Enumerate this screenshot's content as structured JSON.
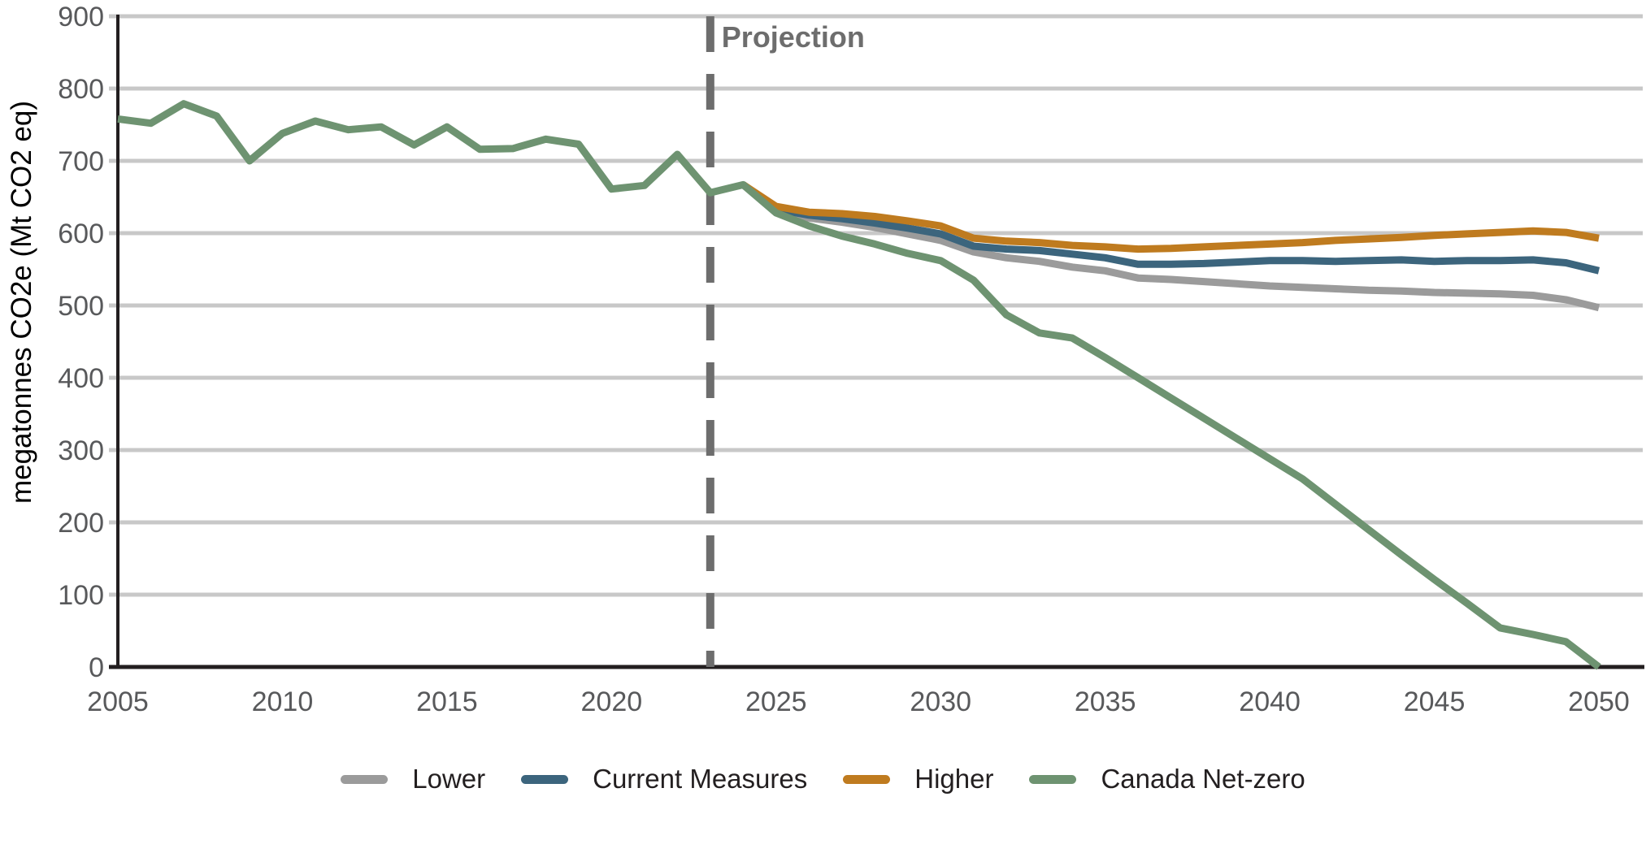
{
  "chart_data": {
    "type": "line",
    "title": "",
    "xlabel": "",
    "ylabel": "megatonnes CO2e (Mt CO2 eq)",
    "xlim": [
      2005,
      2050
    ],
    "ylim": [
      0,
      900
    ],
    "x_ticks": [
      2005,
      2010,
      2015,
      2020,
      2025,
      2030,
      2035,
      2040,
      2045,
      2050
    ],
    "y_ticks": [
      0,
      100,
      200,
      300,
      400,
      500,
      600,
      700,
      800,
      900
    ],
    "grid": "horizontal",
    "legend_position": "bottom-center",
    "annotations": [
      {
        "type": "vline",
        "x": 2023,
        "style": "dashed",
        "label": "Projection",
        "color": "#6D6D6D"
      }
    ],
    "series": [
      {
        "name": "Lower",
        "color": "#9B9B9B",
        "x": [
          2024,
          2025,
          2026,
          2027,
          2028,
          2029,
          2030,
          2031,
          2032,
          2033,
          2034,
          2035,
          2036,
          2037,
          2038,
          2039,
          2040,
          2041,
          2042,
          2043,
          2044,
          2045,
          2046,
          2047,
          2048,
          2049,
          2050
        ],
        "values": [
          667,
          631,
          621,
          615,
          608,
          599,
          590,
          574,
          566,
          561,
          553,
          548,
          538,
          536,
          533,
          530,
          527,
          525,
          523,
          521,
          520,
          518,
          517,
          516,
          514,
          508,
          497
        ]
      },
      {
        "name": "Current Measures",
        "color": "#3C657D",
        "x": [
          2024,
          2025,
          2026,
          2027,
          2028,
          2029,
          2030,
          2031,
          2032,
          2033,
          2034,
          2035,
          2036,
          2037,
          2038,
          2039,
          2040,
          2041,
          2042,
          2043,
          2044,
          2045,
          2046,
          2047,
          2048,
          2049,
          2050
        ],
        "values": [
          667,
          633,
          625,
          620,
          614,
          607,
          599,
          582,
          578,
          576,
          571,
          566,
          557,
          557,
          558,
          560,
          562,
          562,
          561,
          562,
          563,
          561,
          562,
          562,
          563,
          559,
          548
        ]
      },
      {
        "name": "Higher",
        "color": "#BF7B1F",
        "x": [
          2024,
          2025,
          2026,
          2027,
          2028,
          2029,
          2030,
          2031,
          2032,
          2033,
          2034,
          2035,
          2036,
          2037,
          2038,
          2039,
          2040,
          2041,
          2042,
          2043,
          2044,
          2045,
          2046,
          2047,
          2048,
          2049,
          2050
        ],
        "values": [
          667,
          637,
          629,
          627,
          623,
          617,
          610,
          593,
          589,
          587,
          583,
          581,
          578,
          579,
          581,
          583,
          585,
          587,
          590,
          592,
          594,
          597,
          599,
          601,
          603,
          601,
          593
        ]
      },
      {
        "name": "Canada Net-zero",
        "color": "#6E9371",
        "x": [
          2005,
          2006,
          2007,
          2008,
          2009,
          2010,
          2011,
          2012,
          2013,
          2014,
          2015,
          2016,
          2017,
          2018,
          2019,
          2020,
          2021,
          2022,
          2023,
          2024,
          2025,
          2026,
          2027,
          2028,
          2029,
          2030,
          2031,
          2032,
          2033,
          2034,
          2035,
          2036,
          2037,
          2038,
          2039,
          2040,
          2041,
          2042,
          2043,
          2044,
          2045,
          2046,
          2047,
          2048,
          2049,
          2050
        ],
        "values": [
          758,
          752,
          779,
          762,
          700,
          738,
          755,
          743,
          747,
          722,
          747,
          716,
          717,
          730,
          723,
          661,
          666,
          709,
          656,
          667,
          628,
          610,
          596,
          585,
          572,
          562,
          535,
          487,
          462,
          455,
          428,
          400,
          372,
          344,
          316,
          288,
          260,
          225,
          190,
          155,
          121,
          88,
          54,
          45,
          35,
          0
        ]
      }
    ]
  },
  "legend": {
    "items": [
      {
        "label": "Lower",
        "color": "#9B9B9B"
      },
      {
        "label": "Current Measures",
        "color": "#3C657D"
      },
      {
        "label": "Higher",
        "color": "#BF7B1F"
      },
      {
        "label": "Canada Net-zero",
        "color": "#6E9371"
      }
    ]
  },
  "style": {
    "grid_color": "#C8C8C8",
    "axis_color": "#231F20",
    "tick_label_color": "#58595B",
    "projection_color": "#6D6D6D",
    "background": "#FFFFFF"
  }
}
